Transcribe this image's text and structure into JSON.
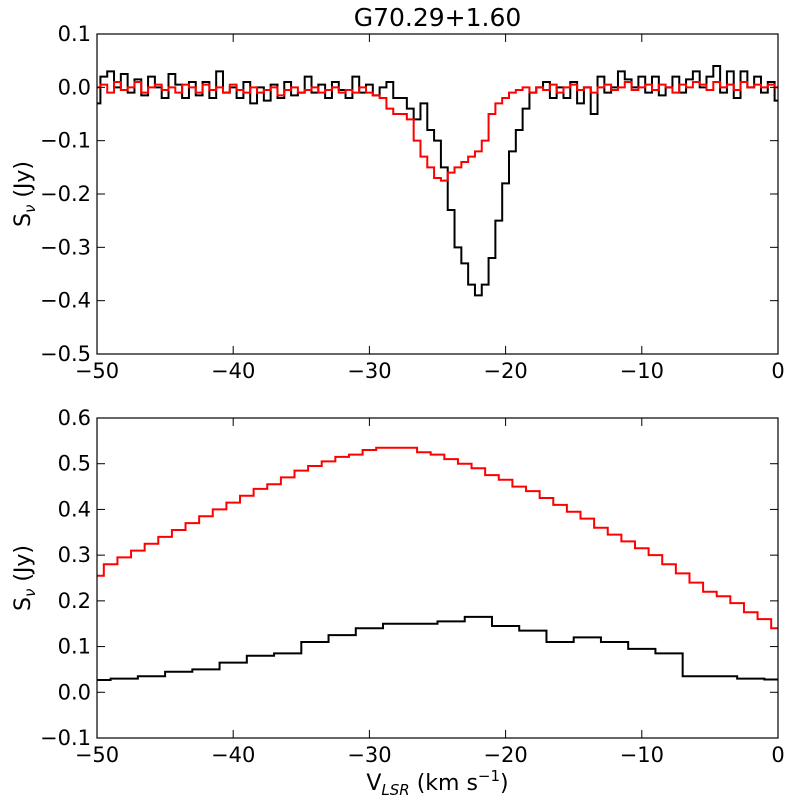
{
  "chart_data": [
    {
      "type": "line",
      "step": true,
      "title": "G70.29+1.60",
      "xlabel": "",
      "ylabel": "S_ν (Jy)",
      "ylabel_main": "S",
      "ylabel_sub": "ν",
      "ylabel_unit": " (Jy)",
      "xlim": [
        -50,
        0
      ],
      "ylim": [
        -0.5,
        0.1
      ],
      "xticks": [
        -50,
        -40,
        -30,
        -20,
        -10,
        0
      ],
      "xtick_labels": [
        "−50",
        "−40",
        "−30",
        "−20",
        "−10",
        "0"
      ],
      "yticks": [
        0.1,
        0.0,
        -0.1,
        -0.2,
        -0.3,
        -0.4,
        -0.5
      ],
      "ytick_labels": [
        "0.1",
        "0.0",
        "−0.1",
        "−0.2",
        "−0.3",
        "−0.4",
        "−0.5"
      ],
      "grid": false,
      "series": [
        {
          "color": "#000000",
          "x": [
            -50,
            -49.5,
            -49,
            -48.5,
            -48,
            -47.5,
            -47,
            -46.5,
            -46,
            -45.5,
            -45,
            -44.5,
            -44,
            -43.5,
            -43,
            -42.5,
            -42,
            -41.5,
            -41,
            -40.5,
            -40,
            -39.5,
            -39,
            -38.5,
            -38,
            -37.5,
            -37,
            -36.5,
            -36,
            -35.5,
            -35,
            -34.5,
            -34,
            -33.5,
            -33,
            -32.5,
            -32,
            -31.5,
            -31,
            -30.5,
            -30,
            -29.5,
            -29,
            -28.5,
            -28,
            -27.5,
            -27,
            -26.5,
            -26,
            -25.5,
            -25,
            -24.5,
            -24,
            -23.5,
            -23,
            -22.5,
            -22,
            -21.5,
            -21,
            -20.5,
            -20,
            -19.5,
            -19,
            -18.5,
            -18,
            -17.5,
            -17,
            -16.5,
            -16,
            -15.5,
            -15,
            -14.5,
            -14,
            -13.5,
            -13,
            -12.5,
            -12,
            -11.5,
            -11,
            -10.5,
            -10,
            -9.5,
            -9,
            -8.5,
            -8,
            -7.5,
            -7,
            -6.5,
            -6,
            -5.5,
            -5,
            -4.5,
            -4,
            -3.5,
            -3,
            -2.5,
            -2,
            -1.5,
            -1,
            -0.5,
            0
          ],
          "y": [
            -0.03,
            0.02,
            0.03,
            0.0,
            0.025,
            -0.01,
            0.015,
            -0.015,
            0.02,
            0.0,
            -0.02,
            0.025,
            0.005,
            -0.02,
            0.01,
            -0.015,
            0.01,
            -0.02,
            0.03,
            -0.01,
            0.0,
            -0.02,
            0.01,
            -0.03,
            0.0,
            -0.025,
            0.005,
            -0.02,
            0.01,
            -0.015,
            -0.01,
            0.02,
            -0.01,
            0.005,
            -0.02,
            0.01,
            -0.005,
            -0.02,
            0.02,
            -0.01,
            0.005,
            -0.015,
            0.0,
            0.01,
            -0.02,
            -0.02,
            -0.04,
            -0.06,
            -0.03,
            -0.08,
            -0.1,
            -0.15,
            -0.23,
            -0.3,
            -0.33,
            -0.37,
            -0.39,
            -0.37,
            -0.32,
            -0.25,
            -0.18,
            -0.12,
            -0.08,
            -0.04,
            -0.01,
            0.0,
            0.01,
            -0.02,
            0.0,
            -0.02,
            0.01,
            -0.03,
            0.0,
            -0.05,
            0.02,
            -0.01,
            0.0,
            0.03,
            0.015,
            0.0,
            0.02,
            -0.01,
            0.02,
            -0.015,
            0.0,
            0.02,
            -0.01,
            0.015,
            0.03,
            0.0,
            0.02,
            0.04,
            -0.01,
            0.03,
            -0.02,
            0.03,
            0.0,
            0.02,
            -0.01,
            0.01,
            -0.025
          ]
        },
        {
          "color": "#ff0000",
          "x": [
            -50,
            -49.5,
            -49,
            -48.5,
            -48,
            -47.5,
            -47,
            -46.5,
            -46,
            -45.5,
            -45,
            -44.5,
            -44,
            -43.5,
            -43,
            -42.5,
            -42,
            -41.5,
            -41,
            -40.5,
            -40,
            -39.5,
            -39,
            -38.5,
            -38,
            -37.5,
            -37,
            -36.5,
            -36,
            -35.5,
            -35,
            -34.5,
            -34,
            -33.5,
            -33,
            -32.5,
            -32,
            -31.5,
            -31,
            -30.5,
            -30,
            -29.5,
            -29,
            -28.5,
            -28,
            -27.5,
            -27,
            -26.5,
            -26,
            -25.5,
            -25,
            -24.5,
            -24,
            -23.5,
            -23,
            -22.5,
            -22,
            -21.5,
            -21,
            -20.5,
            -20,
            -19.5,
            -19,
            -18.5,
            -18,
            -17.5,
            -17,
            -16.5,
            -16,
            -15.5,
            -15,
            -14.5,
            -14,
            -13.5,
            -13,
            -12.5,
            -12,
            -11.5,
            -11,
            -10.5,
            -10,
            -9.5,
            -9,
            -8.5,
            -8,
            -7.5,
            -7,
            -6.5,
            -6,
            -5.5,
            -5,
            -4.5,
            -4,
            -3.5,
            -3,
            -2.5,
            -2,
            -1.5,
            -1,
            -0.5,
            0
          ],
          "y": [
            0.0,
            0.005,
            -0.01,
            0.01,
            -0.005,
            0.0,
            0.01,
            -0.01,
            0.0,
            0.005,
            -0.005,
            0.0,
            -0.01,
            0.005,
            0.0,
            -0.01,
            0.005,
            -0.005,
            0.0,
            -0.01,
            0.005,
            -0.005,
            -0.01,
            0.0,
            -0.01,
            -0.005,
            0.0,
            -0.015,
            -0.005,
            0.0,
            -0.01,
            -0.005,
            0.0,
            -0.01,
            -0.005,
            0.0,
            -0.01,
            -0.005,
            -0.01,
            0.0,
            -0.01,
            -0.015,
            -0.02,
            -0.04,
            -0.05,
            -0.05,
            -0.06,
            -0.1,
            -0.13,
            -0.15,
            -0.17,
            -0.175,
            -0.16,
            -0.15,
            -0.14,
            -0.13,
            -0.12,
            -0.1,
            -0.05,
            -0.03,
            -0.02,
            -0.01,
            -0.005,
            0.0,
            -0.01,
            0.0,
            -0.005,
            0.005,
            -0.01,
            0.0,
            0.005,
            -0.005,
            0.0,
            -0.01,
            0.0,
            0.005,
            -0.005,
            0.0,
            0.01,
            -0.005,
            0.0,
            0.005,
            -0.005,
            0.005,
            0.0,
            -0.01,
            0.005,
            0.0,
            0.01,
            0.005,
            -0.005,
            0.01,
            0.0,
            0.005,
            -0.005,
            0.01,
            0.0,
            0.005,
            0.0,
            0.005,
            0.0
          ]
        }
      ]
    },
    {
      "type": "line",
      "step": true,
      "title": "",
      "xlabel": "V_LSR (km s^-1)",
      "xlabel_main": "V",
      "xlabel_sub": "LSR",
      "xlabel_unit": " (km s",
      "xlabel_sup": "−1",
      "xlabel_close": ")",
      "ylabel": "S_ν (Jy)",
      "ylabel_main": "S",
      "ylabel_sub": "ν",
      "ylabel_unit": " (Jy)",
      "xlim": [
        -50,
        0
      ],
      "ylim": [
        -0.1,
        0.6
      ],
      "xticks": [
        -50,
        -40,
        -30,
        -20,
        -10,
        0
      ],
      "xtick_labels": [
        "−50",
        "−40",
        "−30",
        "−20",
        "−10",
        "0"
      ],
      "yticks": [
        0.6,
        0.5,
        0.4,
        0.3,
        0.2,
        0.1,
        0.0,
        -0.1
      ],
      "ytick_labels": [
        "0.6",
        "0.5",
        "0.4",
        "0.3",
        "0.2",
        "0.1",
        "0.0",
        "−0.1"
      ],
      "grid": false,
      "series": [
        {
          "color": "#ff0000",
          "x": [
            -50,
            -49,
            -48,
            -47,
            -46,
            -45,
            -44,
            -43,
            -42,
            -41,
            -40,
            -39,
            -38,
            -37,
            -36,
            -35,
            -34,
            -33,
            -32,
            -31,
            -30,
            -29,
            -28,
            -27,
            -26,
            -25,
            -24,
            -23,
            -22,
            -21,
            -20,
            -19,
            -18,
            -17,
            -16,
            -15,
            -14,
            -13,
            -12,
            -11,
            -10,
            -9,
            -8,
            -7,
            -6,
            -5,
            -4,
            -3,
            -2,
            -1,
            0
          ],
          "y": [
            0.255,
            0.28,
            0.295,
            0.31,
            0.325,
            0.34,
            0.355,
            0.37,
            0.385,
            0.4,
            0.415,
            0.43,
            0.445,
            0.455,
            0.47,
            0.485,
            0.495,
            0.505,
            0.515,
            0.52,
            0.53,
            0.535,
            0.535,
            0.535,
            0.525,
            0.52,
            0.51,
            0.5,
            0.49,
            0.475,
            0.465,
            0.45,
            0.44,
            0.425,
            0.41,
            0.395,
            0.38,
            0.36,
            0.345,
            0.33,
            0.315,
            0.3,
            0.28,
            0.26,
            0.24,
            0.22,
            0.21,
            0.195,
            0.175,
            0.16,
            0.14
          ]
        },
        {
          "color": "#000000",
          "x": [
            -50,
            -48,
            -46,
            -44,
            -42,
            -40,
            -38,
            -36,
            -34,
            -32,
            -30,
            -28,
            -26,
            -24,
            -22,
            -20,
            -18,
            -16,
            -14,
            -12,
            -10,
            -8,
            -6,
            -4,
            -2,
            0
          ],
          "y": [
            0.027,
            0.03,
            0.035,
            0.045,
            0.05,
            0.065,
            0.08,
            0.085,
            0.11,
            0.125,
            0.14,
            0.15,
            0.15,
            0.155,
            0.165,
            0.145,
            0.135,
            0.11,
            0.12,
            0.11,
            0.095,
            0.085,
            0.035,
            0.035,
            0.03,
            0.028
          ]
        }
      ]
    }
  ]
}
